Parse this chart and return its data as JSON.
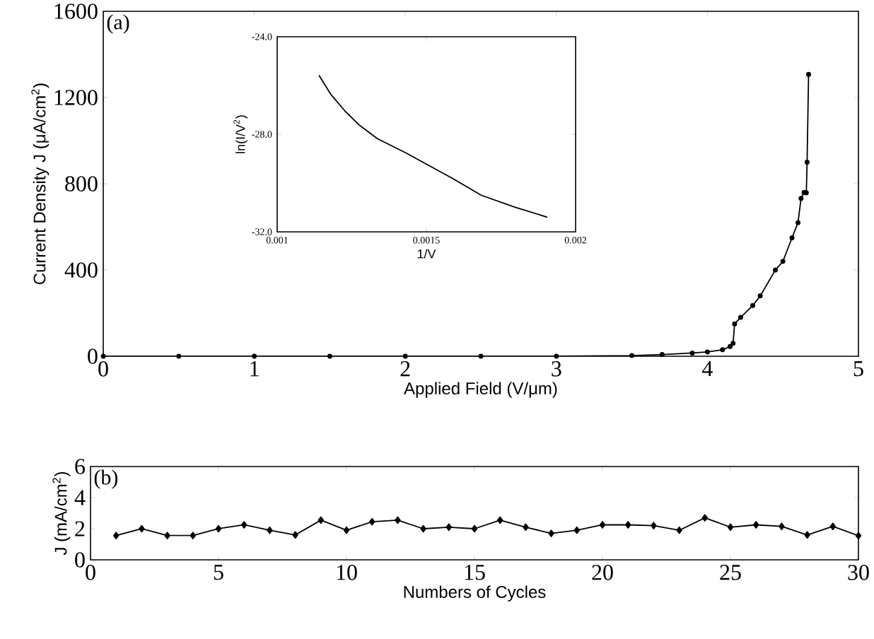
{
  "chart_data": [
    {
      "type": "line",
      "xlabel": "Applied Field (V/μm)",
      "ylabel": "Current  Density J (μA/cm$^{2}$)",
      "annotations": [
        "(a)"
      ],
      "marker": "circle",
      "color": "#000000",
      "x": [
        0,
        0.5,
        1,
        1.5,
        2,
        2.5,
        3,
        3.5,
        3.7,
        3.9,
        4.0,
        4.1,
        4.15,
        4.17,
        4.18,
        4.22,
        4.3,
        4.35,
        4.45,
        4.5,
        4.56,
        4.6,
        4.62,
        4.64,
        4.655,
        4.66,
        4.67
      ],
      "values": [
        0,
        0,
        0,
        0,
        0,
        0,
        0,
        3,
        8,
        15,
        20,
        30,
        45,
        60,
        150,
        180,
        235,
        280,
        400,
        440,
        549,
        620,
        732,
        760,
        758,
        900,
        1307
      ],
      "xlim": [
        0,
        5
      ],
      "ylim": [
        0,
        1600
      ],
      "xticks": [
        0,
        1,
        2,
        3,
        4,
        5
      ],
      "yticks": [
        0,
        400,
        800,
        1200,
        1600
      ]
    },
    {
      "type": "line",
      "xlabel": "1/V",
      "ylabel": "ln(I/V$^{2}$)",
      "marker": "none",
      "color": "#000000",
      "x": [
        0.00114,
        0.001179,
        0.001226,
        0.001273,
        0.001336,
        0.001431,
        0.001589,
        0.001684,
        0.001795,
        0.001905
      ],
      "values": [
        -25.58,
        -26.35,
        -27.03,
        -27.6,
        -28.18,
        -28.76,
        -29.82,
        -30.5,
        -30.98,
        -31.4
      ],
      "xlim": [
        0.001,
        0.002
      ],
      "ylim": [
        -32,
        -24
      ],
      "xticks": [
        0.001,
        0.0015,
        0.002
      ],
      "yticks": [
        {
          "value": -32,
          "label": "-32.0"
        },
        {
          "value": -28,
          "label": "-28.0"
        },
        {
          "value": -24,
          "label": "-24.0"
        }
      ]
    },
    {
      "type": "line",
      "xlabel": "Numbers of Cycles",
      "ylabel": "J (mA/cm$^{2}$)",
      "annotations": [
        "(b)"
      ],
      "marker": "diamond",
      "color": "#000000",
      "x": [
        1,
        2,
        3,
        4,
        5,
        6,
        7,
        8,
        9,
        10,
        11,
        12,
        13,
        14,
        15,
        16,
        17,
        18,
        19,
        20,
        21,
        22,
        23,
        24,
        25,
        26,
        27,
        28,
        29,
        30
      ],
      "values": [
        1.56,
        2.0,
        1.56,
        1.56,
        2.0,
        2.25,
        1.9,
        1.6,
        2.55,
        1.9,
        2.45,
        2.55,
        2.0,
        2.1,
        2.0,
        2.55,
        2.1,
        1.7,
        1.9,
        2.25,
        2.25,
        2.2,
        1.9,
        2.7,
        2.1,
        2.25,
        2.15,
        1.6,
        2.15,
        1.55
      ],
      "xlim": [
        0,
        30
      ],
      "ylim": [
        0,
        6
      ],
      "xticks": [
        0,
        5,
        10,
        15,
        20,
        25,
        30
      ],
      "yticks": [
        0,
        2,
        4,
        6
      ]
    }
  ]
}
